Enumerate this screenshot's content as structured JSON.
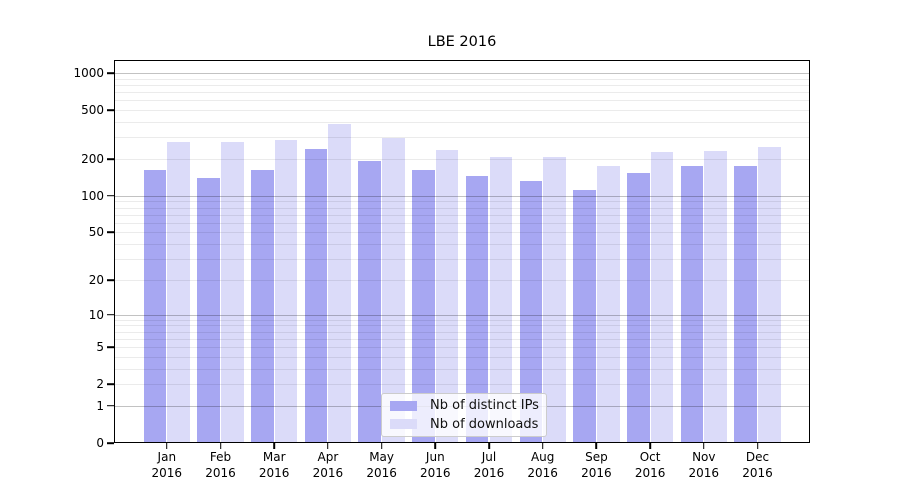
{
  "title": "LBE 2016",
  "chart_data": {
    "type": "bar",
    "title": "LBE 2016",
    "months": [
      "Jan",
      "Feb",
      "Mar",
      "Apr",
      "May",
      "Jun",
      "Jul",
      "Aug",
      "Sep",
      "Oct",
      "Nov",
      "Dec"
    ],
    "year_label": "2016",
    "categories": [
      "Jan 2016",
      "Feb 2016",
      "Mar 2016",
      "Apr 2016",
      "May 2016",
      "Jun 2016",
      "Jul 2016",
      "Aug 2016",
      "Sep 2016",
      "Oct 2016",
      "Nov 2016",
      "Dec 2016"
    ],
    "series": [
      {
        "name": "Nb of distinct IPs",
        "color": "#a7a7f2",
        "values": [
          163,
          141,
          163,
          242,
          193,
          162,
          146,
          133,
          112,
          155,
          174,
          174
        ]
      },
      {
        "name": "Nb of downloads",
        "color": "#dbdbf9",
        "values": [
          276,
          274,
          287,
          386,
          297,
          238,
          206,
          206,
          176,
          229,
          233,
          249
        ]
      }
    ],
    "xlabel": "",
    "ylabel": "",
    "yscale": "symlog",
    "yticks": [
      0,
      1,
      2,
      5,
      10,
      20,
      50,
      100,
      200,
      500,
      1000
    ],
    "minor_gridlines": [
      2,
      3,
      4,
      5,
      6,
      7,
      8,
      9,
      20,
      30,
      40,
      50,
      60,
      70,
      80,
      90,
      200,
      300,
      400,
      500,
      600,
      700,
      800,
      900
    ],
    "major_gridlines": [
      1,
      10,
      100,
      1000
    ],
    "ylim": [
      0,
      1276
    ],
    "grid": "horizontal",
    "legend_position": "bottom-center-inside"
  },
  "colors": {
    "background": "#ffffff",
    "axis": "#000000",
    "grid_major": "#c4c4c4",
    "grid_minor": "#ececec",
    "bar_ips": "#a7a7f2",
    "bar_downloads": "#dbdbf9"
  }
}
